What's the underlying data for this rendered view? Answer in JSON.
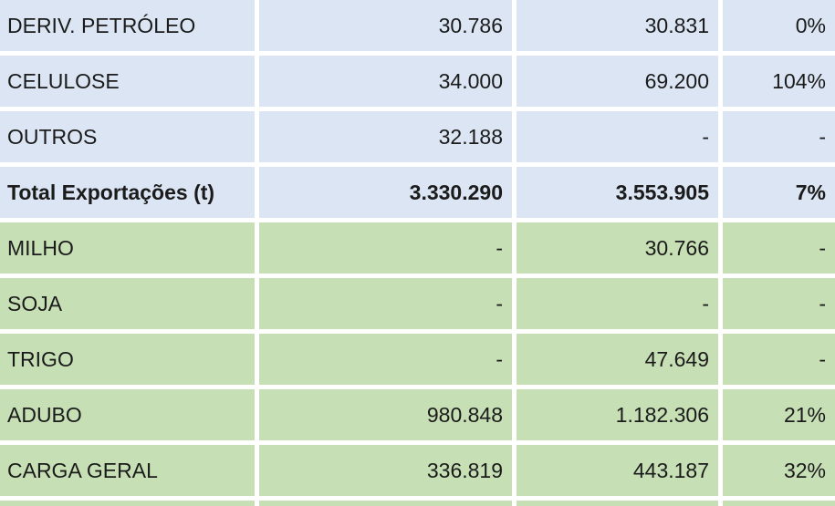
{
  "table": {
    "rows": [
      [
        "DERIV. PETRÓLEO",
        "30.786",
        "30.831",
        "0%"
      ],
      [
        "CELULOSE",
        "34.000",
        "69.200",
        "104%"
      ],
      [
        "OUTROS",
        "32.188",
        "-",
        "-"
      ],
      [
        "Total Exportações (t)",
        "3.330.290",
        "3.553.905",
        "7%"
      ],
      [
        "MILHO",
        "-",
        "30.766",
        "-"
      ],
      [
        "SOJA",
        "-",
        "-",
        "-"
      ],
      [
        "TRIGO",
        "-",
        "47.649",
        "-"
      ],
      [
        "ADUBO",
        "980.848",
        "1.182.306",
        "21%"
      ],
      [
        "CARGA GERAL",
        "336.819",
        "443.187",
        "32%"
      ]
    ]
  }
}
